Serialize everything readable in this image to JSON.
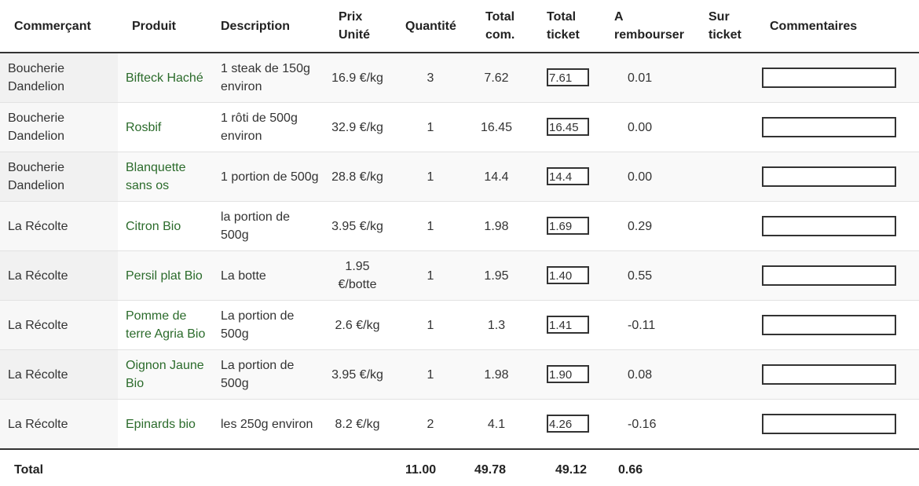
{
  "headers": {
    "merchant": "Commerçant",
    "product": "Produit",
    "description": "Description",
    "unit_price": "Prix Unité",
    "quantity": "Quantité",
    "total_order": "Total com.",
    "total_ticket": "Total ticket",
    "refund": "A rembourser",
    "on_ticket": "Sur ticket",
    "comments": "Commentaires"
  },
  "rows": [
    {
      "merchant": "Boucherie Dandelion",
      "product": "Bifteck Haché",
      "description": "1 steak de 150g environ",
      "unit_price": "16.9 €/kg",
      "quantity": "3",
      "total_order": "7.62",
      "ticket": "7.61",
      "refund": "0.01",
      "on_ticket": "",
      "comment": ""
    },
    {
      "merchant": "Boucherie Dandelion",
      "product": "Rosbif",
      "description": "1 rôti de 500g environ",
      "unit_price": "32.9 €/kg",
      "quantity": "1",
      "total_order": "16.45",
      "ticket": "16.45",
      "refund": "0.00",
      "on_ticket": "",
      "comment": ""
    },
    {
      "merchant": "Boucherie Dandelion",
      "product": "Blanquette sans os",
      "description": "1 portion de 500g",
      "unit_price": "28.8 €/kg",
      "quantity": "1",
      "total_order": "14.4",
      "ticket": "14.4",
      "refund": "0.00",
      "on_ticket": "",
      "comment": ""
    },
    {
      "merchant": "La Récolte",
      "product": "Citron Bio",
      "description": "la portion de 500g",
      "unit_price": "3.95 €/kg",
      "quantity": "1",
      "total_order": "1.98",
      "ticket": "1.69",
      "refund": "0.29",
      "on_ticket": "",
      "comment": ""
    },
    {
      "merchant": "La Récolte",
      "product": "Persil plat Bio",
      "description": "La botte",
      "unit_price": "1.95 €/botte",
      "quantity": "1",
      "total_order": "1.95",
      "ticket": "1.40",
      "refund": "0.55",
      "on_ticket": "",
      "comment": ""
    },
    {
      "merchant": "La Récolte",
      "product": "Pomme de terre Agria Bio",
      "description": "La portion de 500g",
      "unit_price": "2.6 €/kg",
      "quantity": "1",
      "total_order": "1.3",
      "ticket": "1.41",
      "refund": "-0.11",
      "on_ticket": "",
      "comment": ""
    },
    {
      "merchant": "La Récolte",
      "product": "Oignon Jaune Bio",
      "description": "La portion de 500g",
      "unit_price": "3.95 €/kg",
      "quantity": "1",
      "total_order": "1.98",
      "ticket": "1.90",
      "refund": "0.08",
      "on_ticket": "",
      "comment": ""
    },
    {
      "merchant": "La Récolte",
      "product": "Epinards bio",
      "description": "les 250g environ",
      "unit_price": "8.2 €/kg",
      "quantity": "2",
      "total_order": "4.1",
      "ticket": "4.26",
      "refund": "-0.16",
      "on_ticket": "",
      "comment": ""
    }
  ],
  "totals": {
    "label": "Total",
    "quantity": "11.00",
    "total_order": "49.78",
    "total_ticket": "49.12",
    "refund": "0.66"
  },
  "colors": {
    "product_link": "#2b6b2b",
    "stripe": "#f9f9f9",
    "merchant_cell": "#f1f1f1",
    "rule": "#333333"
  }
}
